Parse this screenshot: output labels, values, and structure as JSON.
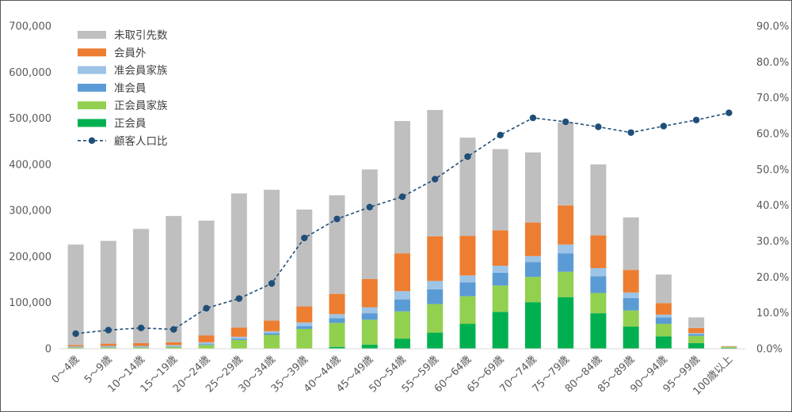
{
  "chart_data": {
    "type": "bar",
    "stacked": true,
    "categories": [
      "0～4歳",
      "5～9歳",
      "10～14歳",
      "15～19歳",
      "20～24歳",
      "25～29歳",
      "30～34歳",
      "35～39歳",
      "40～44歳",
      "45～49歳",
      "50～54歳",
      "55～59歳",
      "60～64歳",
      "65～69歳",
      "70～74歳",
      "75～79歳",
      "80～84歳",
      "85～89歳",
      "90～94歳",
      "95～99歳",
      "100歳以上"
    ],
    "series": [
      {
        "name": "正会員",
        "color": "#00b050",
        "values": [
          0,
          0,
          0,
          0,
          0,
          0,
          0,
          0,
          4000,
          9000,
          22000,
          35000,
          54000,
          80000,
          101000,
          112000,
          77000,
          48000,
          27000,
          12000,
          2000
        ]
      },
      {
        "name": "正会員家族",
        "color": "#92d050",
        "values": [
          3000,
          3000,
          3000,
          4000,
          8000,
          19000,
          30000,
          43000,
          52000,
          54000,
          59000,
          62000,
          60000,
          57000,
          55000,
          55000,
          44000,
          35000,
          27000,
          16000,
          2000
        ]
      },
      {
        "name": "准会員",
        "color": "#5b9bd5",
        "values": [
          1000,
          1000,
          1000,
          1000,
          2000,
          3000,
          4000,
          6000,
          10000,
          14000,
          26000,
          32000,
          30000,
          28000,
          32000,
          40000,
          36000,
          27000,
          14000,
          4000,
          0
        ]
      },
      {
        "name": "准会員家族",
        "color": "#9dc3e6",
        "values": [
          1000,
          2000,
          2000,
          3000,
          4000,
          4000,
          4000,
          8000,
          9000,
          13000,
          18000,
          18000,
          15000,
          15000,
          13000,
          19000,
          18000,
          12000,
          6000,
          2000,
          0
        ]
      },
      {
        "name": "会員外",
        "color": "#ed7d31",
        "values": [
          3000,
          5000,
          6000,
          6000,
          15000,
          20000,
          23000,
          35000,
          44000,
          61000,
          82000,
          97000,
          86000,
          77000,
          73000,
          85000,
          71000,
          49000,
          25000,
          11000,
          1000
        ]
      },
      {
        "name": "未取引先数",
        "color": "#bfbfbf",
        "values": [
          218000,
          223000,
          248000,
          274000,
          249000,
          291000,
          284000,
          210000,
          214000,
          238000,
          287000,
          274000,
          213000,
          176000,
          152000,
          180000,
          154000,
          114000,
          62000,
          23000,
          1000
        ]
      }
    ],
    "line": {
      "name": "顧客人口比",
      "color": "#1f4e79",
      "values": [
        4.2,
        5.2,
        5.8,
        5.4,
        11.3,
        14.0,
        18.2,
        30.9,
        36.2,
        39.5,
        42.4,
        47.3,
        53.6,
        59.6,
        64.4,
        63.3,
        61.9,
        60.3,
        62.1,
        63.8,
        65.8
      ]
    },
    "y_left": {
      "min": 0,
      "max": 700000,
      "ticks": [
        "0",
        "100,000",
        "200,000",
        "300,000",
        "400,000",
        "500,000",
        "600,000",
        "700,000"
      ]
    },
    "y_right": {
      "min": 0,
      "max": 90,
      "ticks": [
        "0.0%",
        "10.0%",
        "20.0%",
        "30.0%",
        "40.0%",
        "50.0%",
        "60.0%",
        "70.0%",
        "80.0%",
        "90.0%"
      ]
    },
    "legend_position": "top-left",
    "legend_order": [
      "未取引先数",
      "会員外",
      "准会員家族",
      "准会員",
      "正会員家族",
      "正会員",
      "顧客人口比"
    ],
    "grid": false
  }
}
